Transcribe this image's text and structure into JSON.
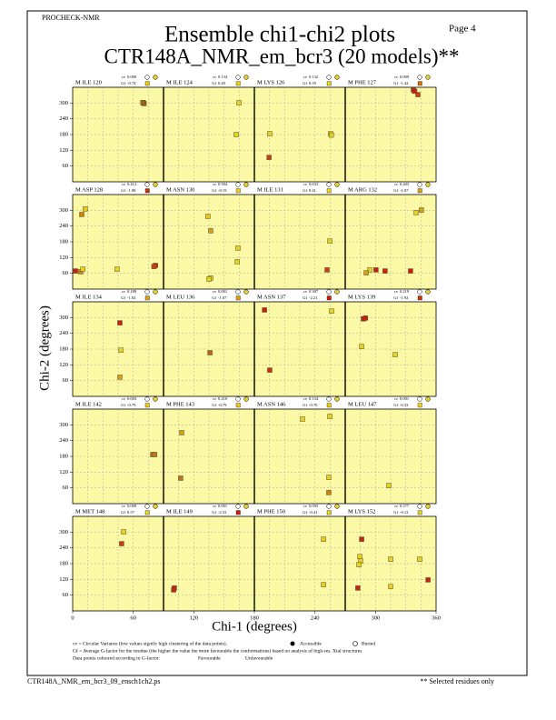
{
  "header": {
    "program": "PROCHECK-NMR",
    "page": "Page  4",
    "title": "Ensemble chi1-chi2 plots",
    "subtitle": "CTR148A_NMR_em_bcr3 (20 models)**"
  },
  "axes": {
    "xlabel": "Chi-1 (degrees)",
    "ylabel": "Chi-2 (degrees)",
    "xlim": [
      0,
      360
    ],
    "ylim": [
      0,
      360
    ],
    "xticks": [
      0,
      60,
      120,
      180,
      240,
      300,
      360
    ],
    "yticks": [
      60,
      120,
      180,
      240,
      300
    ],
    "grid": true
  },
  "cv_label": "cv",
  "gf_label": "Gf",
  "panels": [
    {
      "label": "M ILE 120",
      "cv": "0.000",
      "gf": "-0.74",
      "gf_color": "#e8c818",
      "chi1": [
        280,
        283,
        278
      ],
      "chi2": [
        300,
        298,
        302
      ],
      "colors": [
        "#a86018",
        "#a86018",
        "#a86018"
      ]
    },
    {
      "label": "M ILE 124",
      "cv": "0.134",
      "gf": "0.49",
      "gf_color": "#e8d020",
      "chi1": [
        299,
        288
      ],
      "chi2": [
        301,
        180
      ],
      "colors": [
        "#e8d020",
        "#e8d020"
      ]
    },
    {
      "label": "M LYS 126",
      "cv": "0.132",
      "gf": "0.59",
      "gf_color": "#e8d020",
      "chi1": [
        61,
        58,
        302,
        305
      ],
      "chi2": [
        183,
        93,
        183,
        178
      ],
      "colors": [
        "#e8d020",
        "#c84010",
        "#e8d020",
        "#e8d020"
      ]
    },
    {
      "label": "M PHE 127",
      "cv": "0.009",
      "gf": "-1.42",
      "gf_color": "#d07010",
      "chi1": [
        270,
        288,
        275
      ],
      "chi2": [
        350,
        332,
        345
      ],
      "colors": [
        "#c82010",
        "#c84010",
        "#c82010"
      ]
    },
    {
      "label": "M ASP 128",
      "cv": "0.412",
      "gf": "-1.98",
      "gf_color": "#c83010",
      "chi1": [
        50,
        36,
        11,
        32,
        40,
        176,
        328,
        322
      ],
      "chi2": [
        305,
        284,
        69,
        66,
        76,
        76,
        90,
        86
      ],
      "colors": [
        "#e8c818",
        "#d08010",
        "#c82010",
        "#d08010",
        "#e8d020",
        "#e8d020",
        "#c82010",
        "#c84010"
      ]
    },
    {
      "label": "M ASN 130",
      "cv": "0.504",
      "gf": "-0.19",
      "gf_color": "#e8d020",
      "chi1": [
        176,
        187,
        295,
        292,
        187,
        180
      ],
      "chi2": [
        277,
        222,
        156,
        104,
        42,
        38
      ],
      "colors": [
        "#e8c818",
        "#d8a018",
        "#e8d020",
        "#e8d020",
        "#e8d020",
        "#e8d020"
      ]
    },
    {
      "label": "M ILE 131",
      "cv": "0.033",
      "gf": "0.41",
      "gf_color": "#e8d020",
      "chi1": [
        299,
        288
      ],
      "chi2": [
        183,
        73
      ],
      "colors": [
        "#e8d020",
        "#c84010"
      ]
    },
    {
      "label": "M ARG 132",
      "cv": "0.403",
      "gf": "-1.07",
      "gf_color": "#d8a018",
      "chi1": [
        302,
        281,
        97,
        83,
        122,
        158,
        259
      ],
      "chi2": [
        301,
        291,
        73,
        62,
        73,
        69,
        69
      ],
      "colors": [
        "#d8a018",
        "#e8d020",
        "#e8d020",
        "#d8a018",
        "#c82010",
        "#c82010",
        "#c82010"
      ]
    },
    {
      "label": "M ILE 134",
      "cv": "0.189",
      "gf": "-1.02",
      "gf_color": "#d8a018",
      "chi1": [
        187,
        191,
        187
      ],
      "chi2": [
        280,
        176,
        73
      ],
      "colors": [
        "#c82010",
        "#e8d020",
        "#d8a018"
      ]
    },
    {
      "label": "M LEU 136",
      "cv": "0.001",
      "gf": "-1.07",
      "gf_color": "#d8a018",
      "chi1": [
        184
      ],
      "chi2": [
        166
      ],
      "colors": [
        "#b86818"
      ]
    },
    {
      "label": "M ASN 137",
      "cv": "0.307",
      "gf": "-2.21",
      "gf_color": "#c82010",
      "chi1": [
        40,
        61,
        306
      ],
      "chi2": [
        329,
        100,
        325
      ],
      "colors": [
        "#c82010",
        "#c83010",
        "#e8d020"
      ]
    },
    {
      "label": "M LYS 139",
      "cv": "0.219",
      "gf": "-1.92",
      "gf_color": "#c83010",
      "chi1": [
        72,
        80,
        65,
        198
      ],
      "chi2": [
        295,
        298,
        190,
        159
      ],
      "colors": [
        "#c82010",
        "#c82010",
        "#e8d020",
        "#e8d020"
      ]
    },
    {
      "label": "M ILE 142",
      "cv": "0.003",
      "gf": "-0.79",
      "gf_color": "#e8c818",
      "chi1": [
        317,
        325
      ],
      "chi2": [
        187,
        187
      ],
      "colors": [
        "#b87818",
        "#b87818"
      ]
    },
    {
      "label": "M PHE 143",
      "cv": "0.210",
      "gf": "-0.79",
      "gf_color": "#e8c818",
      "chi1": [
        72,
        68
      ],
      "chi2": [
        270,
        97
      ],
      "colors": [
        "#d8a018",
        "#b87818"
      ]
    },
    {
      "label": "M ASN 146",
      "cv": "0.134",
      "gf": "-0.70",
      "gf_color": "#e8c818",
      "chi1": [
        191,
        299,
        295,
        295
      ],
      "chi2": [
        322,
        332,
        100,
        42
      ],
      "colors": [
        "#e8d020",
        "#e8d020",
        "#e8d020",
        "#d08010"
      ]
    },
    {
      "label": "M LEU 147",
      "cv": "0.001",
      "gf": "-0.33",
      "gf_color": "#e8d020",
      "chi1": [
        173
      ],
      "chi2": [
        69
      ],
      "colors": [
        "#e8d020"
      ]
    },
    {
      "label": "M MET 148",
      "cv": "0.009",
      "gf": "0.57",
      "gf_color": "#e8d020",
      "chi1": [
        202,
        194
      ],
      "chi2": [
        301,
        256
      ],
      "colors": [
        "#e8d020",
        "#c84010"
      ]
    },
    {
      "label": "M ILE 149",
      "cv": "0.001",
      "gf": "-2.33",
      "gf_color": "#c82010",
      "chi1": [
        43,
        40
      ],
      "chi2": [
        87,
        80
      ],
      "colors": [
        "#c82010",
        "#c82010"
      ]
    },
    {
      "label": "M PHE 150",
      "cv": "0.093",
      "gf": "-0.41",
      "gf_color": "#e8d020",
      "chi1": [
        274,
        274
      ],
      "chi2": [
        273,
        100
      ],
      "colors": [
        "#e8c818",
        "#e8c818"
      ]
    },
    {
      "label": "M LYS 152",
      "cv": "0.377",
      "gf": "-0.13",
      "gf_color": "#e8d020",
      "chi1": [
        65,
        58,
        61,
        54,
        50,
        180,
        180,
        295,
        328
      ],
      "chi2": [
        273,
        207,
        190,
        176,
        87,
        197,
        93,
        197,
        118
      ],
      "colors": [
        "#c82010",
        "#e8d020",
        "#e8d020",
        "#e8d020",
        "#c82010",
        "#e8d020",
        "#e8d020",
        "#e8d020",
        "#c82010"
      ]
    }
  ],
  "legend": {
    "cv_note": "cv = Circular Variance (low values signify high clustering of the data points).",
    "accessible": "Accessible",
    "buried": "Buried",
    "gf_note": "Gf = Average G-factor for the residue (the higher the value the more favourable the conformations) based on analysis of high-res. Xtal structures",
    "colour_note": "Data points coloured according to G-factor:",
    "favourable": "Favourable",
    "unfavourable": "Unfavourable",
    "favourable_color": "#e8d020",
    "unfavourable_color": "#c82010"
  },
  "footer": {
    "file": "CTR148A_NMR_em_bcr3_09_ensch1ch2.ps",
    "note": "** Selected residues only"
  }
}
